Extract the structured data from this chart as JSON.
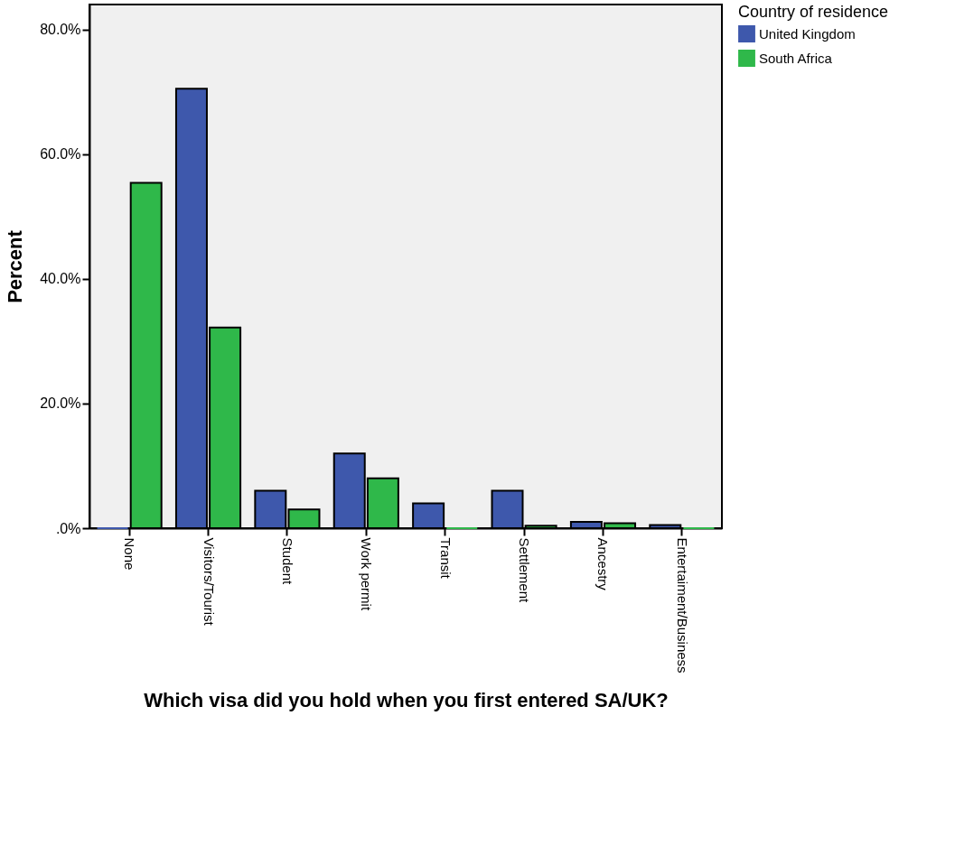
{
  "chart_data": {
    "type": "bar",
    "xlabel": "Which visa did you hold when you first entered SA/UK?",
    "ylabel": "Percent",
    "legend_title": "Country of residence",
    "categories": [
      "None",
      "Visitors/Tourist",
      "Student",
      "Work permit",
      "Transit",
      "Settlement",
      "Ancestry",
      "Entertaiment/Business"
    ],
    "series": [
      {
        "name": "United Kingdom",
        "color": "#3e58ac",
        "values": [
          0,
          70.5,
          6.0,
          12.0,
          4.0,
          6.0,
          1.0,
          0.5
        ]
      },
      {
        "name": "South Africa",
        "color": "#2fb84a",
        "values": [
          55.4,
          32.2,
          3.0,
          8.0,
          0,
          0.4,
          0.8,
          0
        ]
      }
    ],
    "ylim": [
      0,
      84
    ],
    "yticks": [
      {
        "value": 0,
        "label": ".0%"
      },
      {
        "value": 20,
        "label": "20.0%"
      },
      {
        "value": 40,
        "label": "40.0%"
      },
      {
        "value": 60,
        "label": "60.0%"
      },
      {
        "value": 80,
        "label": "80.0%"
      }
    ],
    "legend": "top right",
    "grid": false
  }
}
